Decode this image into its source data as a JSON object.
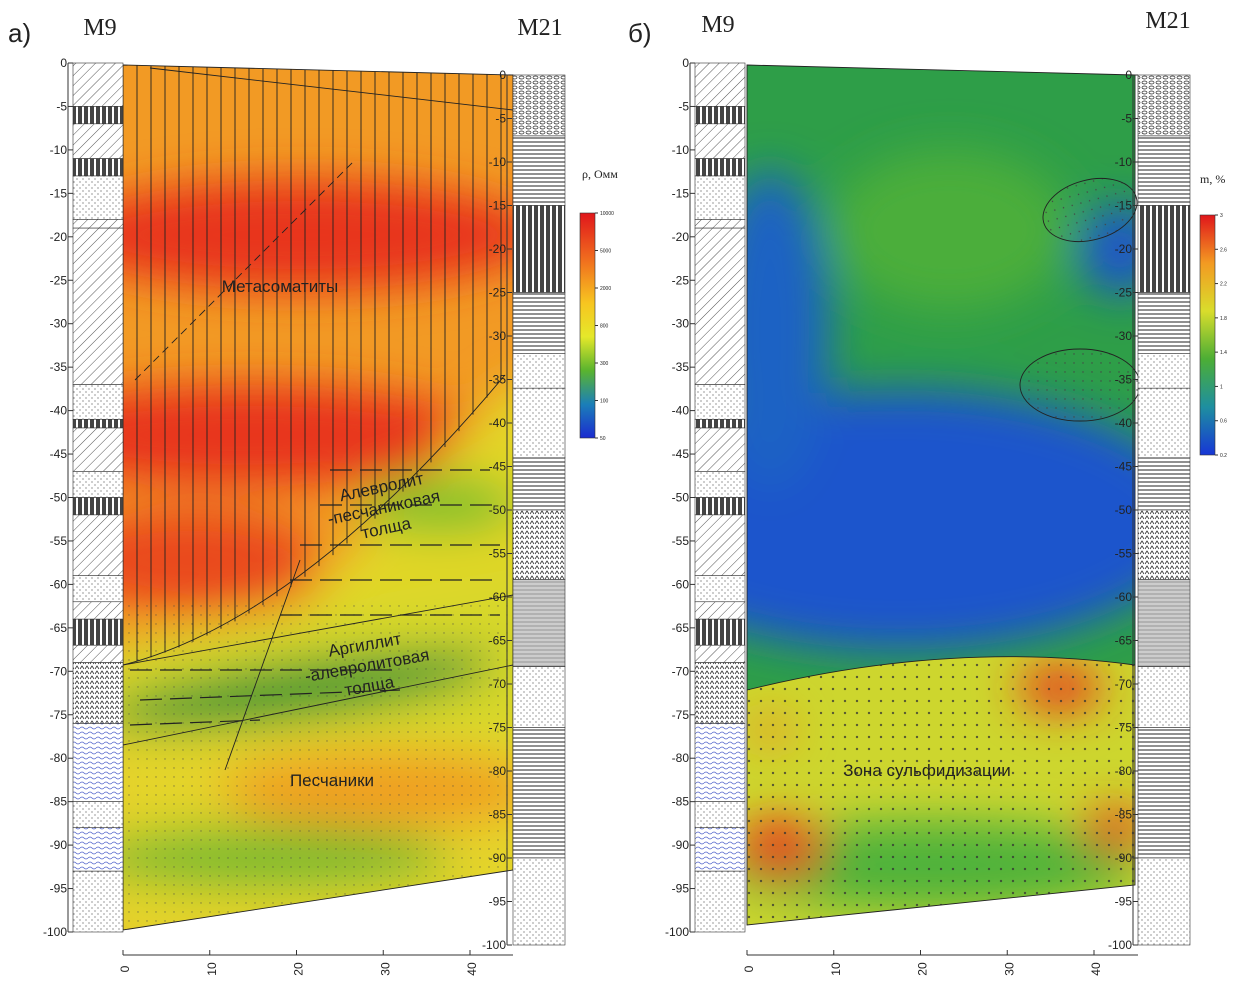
{
  "panels": [
    {
      "label": "а)",
      "well_left": "M9",
      "well_right": "M21",
      "depth_ticks": [
        0,
        -5,
        -10,
        -15,
        -20,
        -25,
        -30,
        -35,
        -40,
        -45,
        -50,
        -55,
        -60,
        -65,
        -70,
        -75,
        -80,
        -85,
        -90,
        -95,
        -100
      ],
      "distance_ticks": [
        0,
        10,
        20,
        30,
        40
      ],
      "colorbar": {
        "title": "ρ, Омм",
        "ticks": [
          10000,
          5000,
          2000,
          800,
          300,
          100,
          50
        ]
      },
      "annotations": [
        {
          "lines": [
            "Метасоматиты"
          ]
        },
        {
          "lines": [
            "Алевролит",
            "-песчаниковая",
            "толща"
          ]
        },
        {
          "lines": [
            "Аргиллит",
            "-алевролитовая",
            "толща"
          ]
        },
        {
          "lines": [
            "Песчаники"
          ]
        }
      ]
    },
    {
      "label": "б)",
      "well_left": "M9",
      "well_right": "M21",
      "depth_ticks": [
        0,
        -5,
        -10,
        -15,
        -20,
        -25,
        -30,
        -35,
        -40,
        -45,
        -50,
        -55,
        -60,
        -65,
        -70,
        -75,
        -80,
        -85,
        -90,
        -95,
        -100
      ],
      "distance_ticks": [
        0,
        10,
        20,
        30,
        40
      ],
      "colorbar": {
        "title": "m, %",
        "ticks": [
          3,
          2.6,
          2.2,
          1.8,
          1.4,
          1,
          0.6,
          0.2
        ]
      },
      "annotations": [
        {
          "lines": [
            "Зона сульфидизации"
          ]
        }
      ]
    }
  ]
}
